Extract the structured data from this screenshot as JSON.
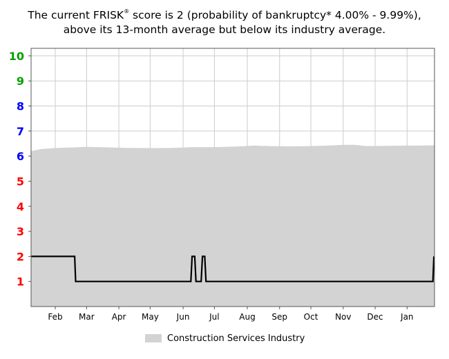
{
  "title": {
    "line1_a": "The current FRISK",
    "line1_sup": "®",
    "line1_b": " score is 2 (probability of bankruptcy* 4.00% - 9.99%),",
    "line2": "above its 13-month average but below its industry average."
  },
  "chart_data": {
    "type": "area",
    "title": "The current FRISK® score is 2 (probability of bankruptcy* 4.00% - 9.99%), above its 13-month average but below its industry average.",
    "xlabel": "",
    "ylabel": "",
    "ylim": [
      0,
      10.3
    ],
    "xlim": [
      0,
      12.5
    ],
    "grid": true,
    "legend_placement": "bottom-center",
    "y_ticks": [
      1,
      2,
      3,
      4,
      5,
      6,
      7,
      8,
      9,
      10
    ],
    "y_tick_colors": {
      "1": "#ff0000",
      "2": "#ff0000",
      "3": "#ff0000",
      "4": "#ff0000",
      "5": "#ff0000",
      "6": "#0000ff",
      "7": "#0000ff",
      "8": "#0000ff",
      "9": "#00a000",
      "10": "#00a000"
    },
    "x_ticks": [
      {
        "label": "Feb",
        "x": 0.75
      },
      {
        "label": "Mar",
        "x": 1.72
      },
      {
        "label": "Apr",
        "x": 2.72
      },
      {
        "label": "May",
        "x": 3.69
      },
      {
        "label": "Jun",
        "x": 4.71
      },
      {
        "label": "Jul",
        "x": 5.68
      },
      {
        "label": "Aug",
        "x": 6.7
      },
      {
        "label": "Sep",
        "x": 7.7
      },
      {
        "label": "Oct",
        "x": 8.67
      },
      {
        "label": "Nov",
        "x": 9.67
      },
      {
        "label": "Dec",
        "x": 10.66
      },
      {
        "label": "Jan",
        "x": 11.65
      }
    ],
    "series": [
      {
        "name": "Construction Services Industry",
        "kind": "area",
        "color": "#d3d3d3",
        "x": [
          0,
          0.3,
          0.7,
          1.2,
          1.7,
          2.3,
          3.0,
          3.8,
          4.4,
          5.0,
          5.6,
          6.0,
          6.5,
          6.9,
          7.4,
          8.0,
          8.6,
          9.2,
          9.7,
          10.0,
          10.4,
          11.0,
          11.6,
          12.0,
          12.5
        ],
        "y": [
          6.2,
          6.28,
          6.32,
          6.34,
          6.37,
          6.35,
          6.33,
          6.32,
          6.33,
          6.36,
          6.36,
          6.37,
          6.39,
          6.42,
          6.4,
          6.39,
          6.4,
          6.42,
          6.45,
          6.45,
          6.4,
          6.41,
          6.42,
          6.42,
          6.43
        ]
      },
      {
        "name": "FRISK score",
        "kind": "line",
        "color": "#000000",
        "x": [
          0,
          1.35,
          1.38,
          4.95,
          4.99,
          5.07,
          5.11,
          5.27,
          5.31,
          5.38,
          5.42,
          12.45,
          12.48
        ],
        "y": [
          2,
          2,
          1,
          1,
          2,
          2,
          1,
          1,
          2,
          2,
          1,
          1,
          2
        ]
      }
    ]
  },
  "legend": {
    "label": "Construction Services Industry",
    "color": "#d3d3d3"
  }
}
